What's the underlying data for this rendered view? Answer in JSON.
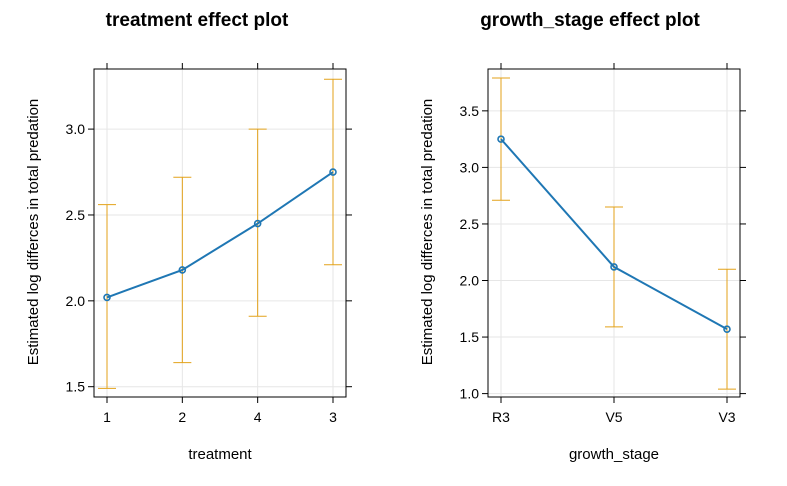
{
  "chart_data": [
    {
      "type": "line",
      "title": "treatment effect plot",
      "xlabel": "treatment",
      "ylabel": "Estimated log differces in total predation",
      "categories": [
        "1",
        "2",
        "4",
        "3"
      ],
      "series": [
        {
          "values": [
            2.02,
            2.18,
            2.45,
            2.75
          ],
          "lower": [
            1.49,
            1.64,
            1.91,
            2.21
          ],
          "upper": [
            2.56,
            2.72,
            3.0,
            3.29
          ]
        }
      ],
      "ylim": [
        1.44,
        3.35
      ],
      "yticks": [
        "1.5",
        "2.0",
        "2.5",
        "3.0"
      ],
      "grid": true,
      "line_color": "#1f77b4",
      "errorbar_color": "#e3a21a"
    },
    {
      "type": "line",
      "title": "growth_stage effect plot",
      "xlabel": "growth_stage",
      "ylabel": "Estimated log differces in total predation",
      "categories": [
        "R3",
        "V5",
        "V3"
      ],
      "series": [
        {
          "values": [
            3.25,
            2.12,
            1.57
          ],
          "lower": [
            2.71,
            1.59,
            1.04
          ],
          "upper": [
            3.79,
            2.65,
            2.1
          ]
        }
      ],
      "ylim": [
        0.97,
        3.87
      ],
      "yticks": [
        "1.0",
        "1.5",
        "2.0",
        "2.5",
        "3.0",
        "3.5"
      ],
      "grid": true,
      "line_color": "#1f77b4",
      "errorbar_color": "#e3a21a"
    }
  ]
}
